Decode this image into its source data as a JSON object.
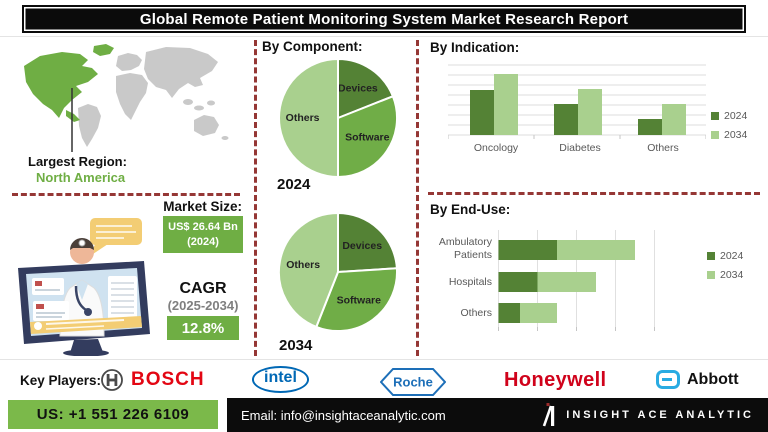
{
  "title": "Global Remote Patient Monitoring System Market Research Report",
  "region": {
    "label": "Largest Region:",
    "value": "North America"
  },
  "market": {
    "size_label": "Market Size:",
    "size_value": "US$ 26.64 Bn",
    "size_year": "(2024)",
    "cagr_label": "CAGR",
    "cagr_period": "(2025-2034)",
    "cagr_value": "12.8%"
  },
  "key_players": {
    "label": "Key Players:",
    "companies": [
      "BOSCH",
      "intel",
      "Roche",
      "Honeywell",
      "Abbott"
    ]
  },
  "footer": {
    "phone": "US: +1 551 226 6109",
    "email": "Email: info@insightaceanalytic.com",
    "brand": "INSIGHT ACE ANALYTIC"
  },
  "colors": {
    "dark_green": "#548235",
    "mid_green": "#70ad47",
    "light_green": "#a9d08e",
    "accent_green": "#6fae44",
    "phone_green": "#7bb94a",
    "divider_red": "#953735",
    "banner_black": "#0b0b0b",
    "map_gray": "#c9c9c9",
    "bosch_red": "#e30613",
    "honeywell_red": "#d0021b",
    "intel_blue": "#0068b5",
    "roche_blue": "#1d6fb8",
    "abbott_blue": "#29abe2"
  },
  "chart_data": [
    {
      "type": "pie",
      "title": "By Component:",
      "year": "2024",
      "labels": [
        "Devices",
        "Software",
        "Others"
      ],
      "values": [
        19,
        31,
        50
      ],
      "slice_colors": [
        "#548235",
        "#70ad47",
        "#a9d08e"
      ]
    },
    {
      "type": "pie",
      "year": "2034",
      "labels": [
        "Devices",
        "Software",
        "Others"
      ],
      "values": [
        24,
        32,
        44
      ],
      "slice_colors": [
        "#548235",
        "#70ad47",
        "#a9d08e"
      ]
    },
    {
      "type": "bar",
      "title": "By Indication:",
      "categories": [
        "Oncology",
        "Diabetes",
        "Others"
      ],
      "series": [
        {
          "name": "2024",
          "values": [
            4.5,
            3.1,
            1.6
          ],
          "color": "#548235"
        },
        {
          "name": "2034",
          "values": [
            6.1,
            4.6,
            3.1
          ],
          "color": "#a9d08e"
        }
      ],
      "ylim": [
        0,
        7
      ],
      "grid": true,
      "legend_position": "right"
    },
    {
      "type": "bar",
      "orientation": "horizontal",
      "stacked": true,
      "title": "By End-Use:",
      "categories": [
        "Ambulatory Patients",
        "Hospitals",
        "Others"
      ],
      "series": [
        {
          "name": "2024",
          "values": [
            1.5,
            1.0,
            0.55
          ],
          "color": "#548235"
        },
        {
          "name": "2034",
          "values": [
            2.0,
            1.5,
            0.95
          ],
          "color": "#a9d08e"
        }
      ],
      "xlim": [
        0,
        4.5
      ],
      "grid": true,
      "legend_position": "right"
    }
  ]
}
